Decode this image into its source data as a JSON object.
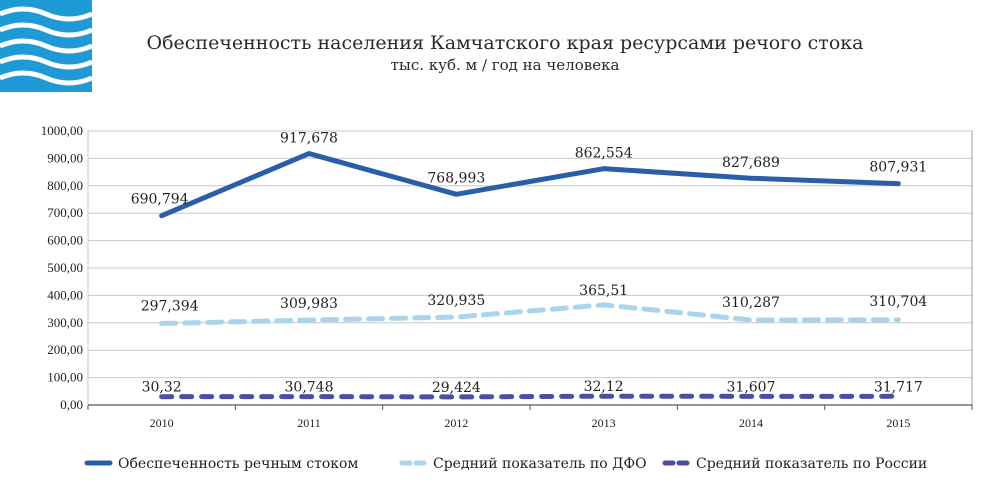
{
  "chart_data": {
    "type": "line",
    "title": "Обеспеченность населения Камчатского края ресурсами речого стока",
    "subtitle": "тыс. куб. м / год на человека",
    "categories": [
      "2010",
      "2011",
      "2012",
      "2013",
      "2014",
      "2015"
    ],
    "ylim": [
      0,
      1000
    ],
    "yticks": [
      "0,00",
      "100,00",
      "200,00",
      "300,00",
      "400,00",
      "500,00",
      "600,00",
      "700,00",
      "800,00",
      "900,00",
      "1000,00"
    ],
    "grid": true,
    "legend_position": "bottom",
    "series": [
      {
        "name": "Обеспеченность речным стоком",
        "values": [
          690.794,
          917.678,
          768.993,
          862.554,
          827.689,
          807.931
        ],
        "labels": [
          "690,794",
          "917,678",
          "768,993",
          "862,554",
          "827,689",
          "807,931"
        ],
        "color": "#2a5ea8",
        "style": "solid"
      },
      {
        "name": "Средний показатель по ДФО",
        "values": [
          297.394,
          309.983,
          320.935,
          365.51,
          310.287,
          310.704
        ],
        "labels": [
          "297,394",
          "309,983",
          "320,935",
          "365,51",
          "310,287",
          "310,704"
        ],
        "color": "#a9d4ea",
        "style": "dashed"
      },
      {
        "name": "Средний показатель по России",
        "values": [
          30.32,
          30.748,
          29.424,
          32.12,
          31.607,
          31.717
        ],
        "labels": [
          "30,32",
          "30,748",
          "29,424",
          "32,12",
          "31,607",
          "31,717"
        ],
        "color": "#4a4fa3",
        "style": "dashed"
      }
    ]
  },
  "logo": {
    "name": "water-waves-logo",
    "color": "#1e9bd7"
  }
}
